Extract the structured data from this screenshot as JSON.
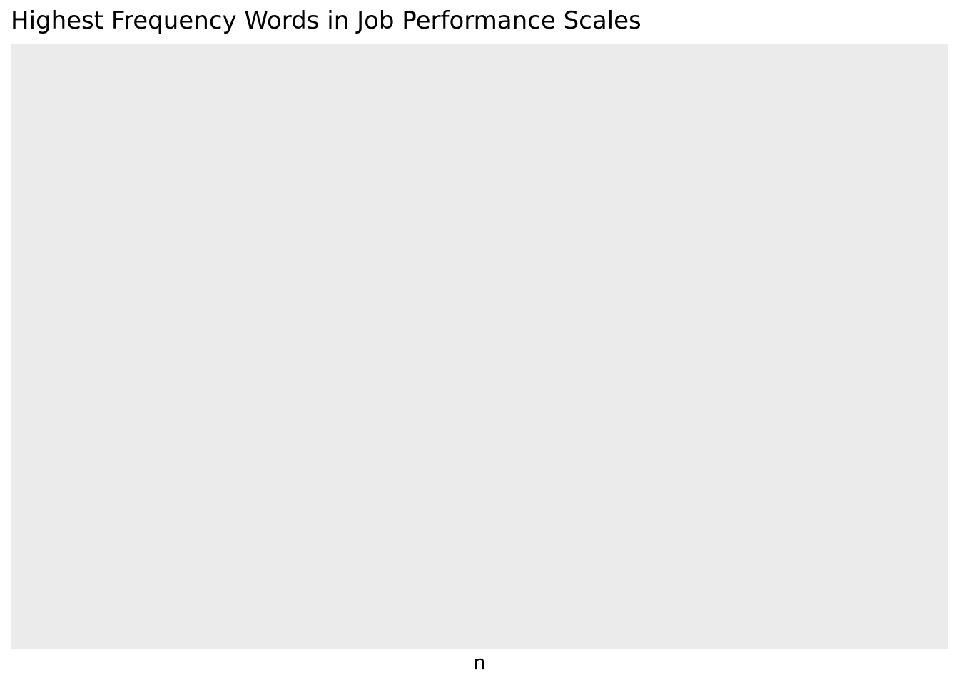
{
  "chart_data": {
    "type": "bar",
    "title": "Highest Frequency Words in Job Performance Scales",
    "xlabel": "n",
    "ylabel": "",
    "categories": [],
    "values": [],
    "grid": false,
    "panel_color": "#ebebeb",
    "background_color": "#ffffff"
  }
}
